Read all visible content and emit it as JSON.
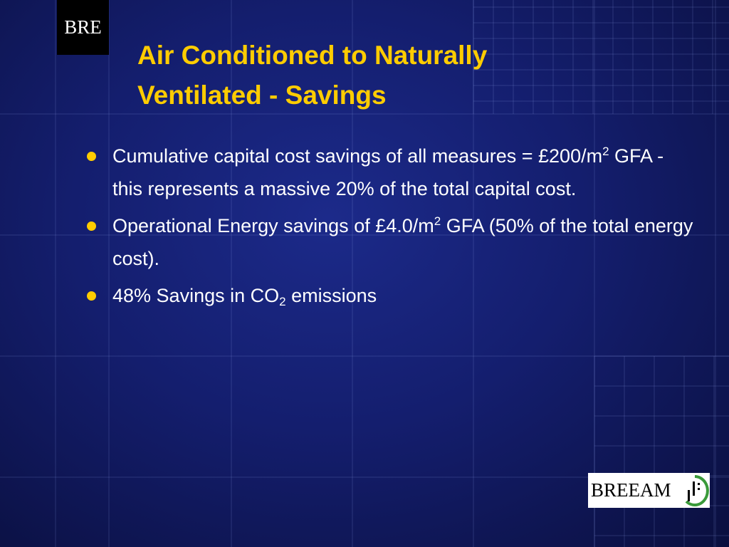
{
  "logo": {
    "text": "BRE"
  },
  "title": {
    "lines": [
      "Air Conditioned to Naturally",
      "Ventilated - Savings"
    ]
  },
  "bullets": [
    {
      "segments": [
        {
          "text": "Cumulative capital cost savings of all measures = £200/m",
          "kind": "normal"
        },
        {
          "text": "2",
          "kind": "sup"
        },
        {
          "text": " GFA - this represents a massive 20% of the total capital cost.",
          "kind": "normal"
        }
      ]
    },
    {
      "segments": [
        {
          "text": "Operational Energy savings of £4.0/m",
          "kind": "normal"
        },
        {
          "text": "2",
          "kind": "sup"
        },
        {
          "text": " GFA (50% of the total energy cost).",
          "kind": "normal"
        }
      ]
    },
    {
      "segments": [
        {
          "text": "48% Savings in CO",
          "kind": "normal"
        },
        {
          "text": "2",
          "kind": "sub"
        },
        {
          "text": " emissions",
          "kind": "normal"
        }
      ]
    }
  ],
  "footer_logo": {
    "text": "BREEAM"
  }
}
